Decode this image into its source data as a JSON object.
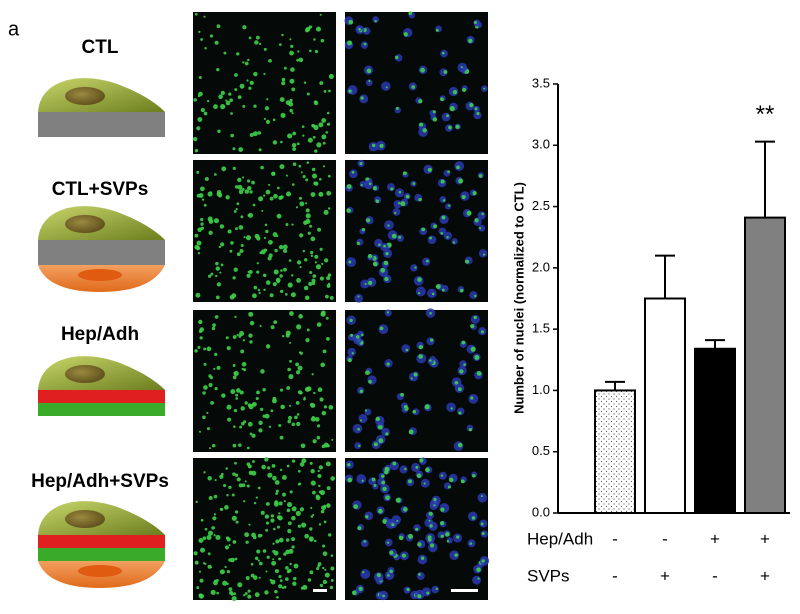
{
  "panel_label": "a",
  "conditions": [
    "CTL",
    "CTL+SVPs",
    "Hep/Adh",
    "Hep/Adh+SVPs"
  ],
  "chart_data": {
    "type": "bar",
    "ylabel": "Number of nuclei (normalized to CTL)",
    "categories": [
      null,
      null,
      null,
      null
    ],
    "values": [
      1.0,
      1.75,
      1.34,
      2.41
    ],
    "errors": [
      0.07,
      0.35,
      0.07,
      0.62
    ],
    "colors": [
      "#ffffff",
      "#ffffff",
      "#000000",
      "#808080"
    ],
    "patterns": [
      "dots",
      null,
      null,
      null
    ],
    "annotations": [
      {
        "category": 3,
        "text": "**"
      }
    ],
    "ylim": [
      0,
      3.5
    ],
    "yticks": [
      {
        "value": 0,
        "label": "0.0"
      },
      {
        "value": 0.5,
        "label": "0.5"
      },
      {
        "value": 1,
        "label": "1.0"
      },
      {
        "value": 1.5,
        "label": "1.5"
      },
      {
        "value": 2,
        "label": "2.0"
      },
      {
        "value": 2.5,
        "label": "2.5"
      },
      {
        "value": 3,
        "label": "3.0"
      },
      {
        "value": 3.5,
        "label": "3.5"
      }
    ],
    "factor_rows": [
      {
        "name": "Hep/Adh",
        "values": [
          "-",
          "-",
          "+",
          "+"
        ]
      },
      {
        "name": "SVPs",
        "values": [
          "-",
          "+",
          "-",
          "+"
        ]
      }
    ]
  }
}
